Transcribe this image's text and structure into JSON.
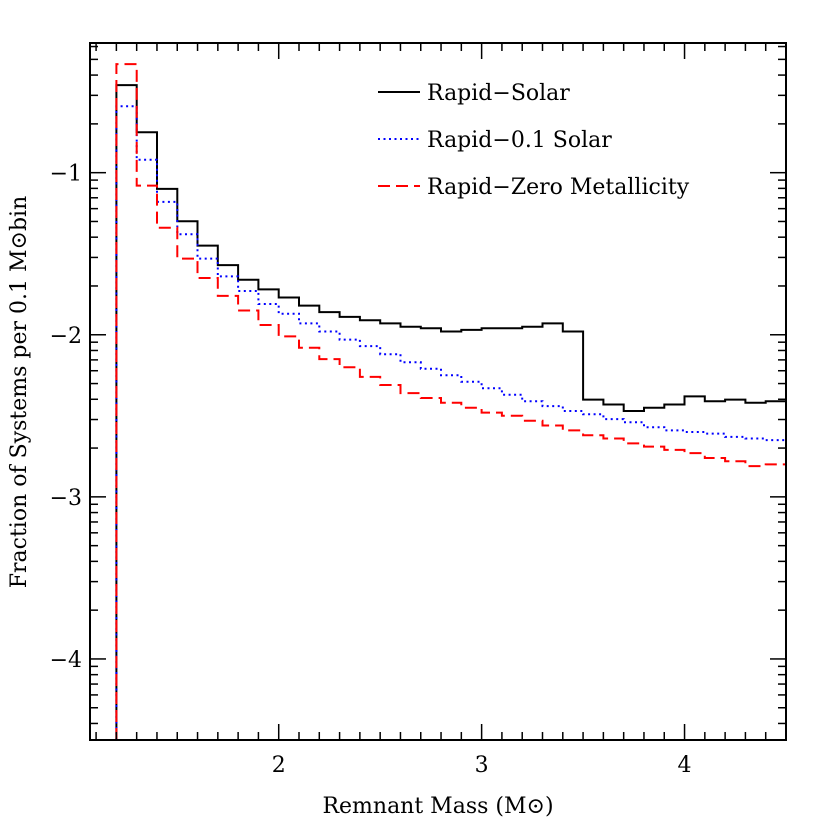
{
  "chart_data": {
    "type": "line",
    "style": "step",
    "xlabel": "Remnant Mass (M⊙)",
    "ylabel": "Fraction of Systems per 0.1 M⊙bin",
    "xlim": [
      1.07,
      4.5
    ],
    "ylim": [
      -4.5,
      -0.2
    ],
    "y_scale": "log10",
    "x_ticks": [
      2,
      3,
      4
    ],
    "y_ticks": [
      -1,
      -2,
      -3,
      -4
    ],
    "grid": false,
    "legend_position": "top-right",
    "bin_edges": [
      1.2,
      1.3,
      1.4,
      1.5,
      1.6,
      1.7,
      1.8,
      1.9,
      2.0,
      2.1,
      2.2,
      2.3,
      2.4,
      2.5,
      2.6,
      2.7,
      2.8,
      2.9,
      3.0,
      3.1,
      3.2,
      3.3,
      3.4,
      3.5,
      3.6,
      3.7,
      3.8,
      3.9,
      4.0,
      4.1,
      4.2,
      4.3,
      4.4,
      4.5
    ],
    "series": [
      {
        "name": "Rapid−Solar",
        "color": "#000000",
        "dash": "solid",
        "values": [
          -0.46,
          -0.75,
          -1.1,
          -1.3,
          -1.45,
          -1.57,
          -1.66,
          -1.72,
          -1.77,
          -1.82,
          -1.86,
          -1.89,
          -1.91,
          -1.93,
          -1.95,
          -1.96,
          -1.98,
          -1.97,
          -1.96,
          -1.96,
          -1.95,
          -1.93,
          -1.98,
          -2.4,
          -2.43,
          -2.47,
          -2.45,
          -2.43,
          -2.38,
          -2.41,
          -2.4,
          -2.42,
          -2.41
        ]
      },
      {
        "name": "Rapid−0.1 Solar",
        "color": "#0000ff",
        "dash": "dotted",
        "values": [
          -0.59,
          -0.92,
          -1.18,
          -1.38,
          -1.53,
          -1.64,
          -1.73,
          -1.81,
          -1.87,
          -1.93,
          -1.98,
          -2.03,
          -2.07,
          -2.12,
          -2.17,
          -2.21,
          -2.25,
          -2.29,
          -2.33,
          -2.37,
          -2.41,
          -2.44,
          -2.47,
          -2.49,
          -2.52,
          -2.54,
          -2.57,
          -2.59,
          -2.6,
          -2.61,
          -2.63,
          -2.64,
          -2.65
        ]
      },
      {
        "name": "Rapid−Zero Metallicity",
        "color": "#ff0000",
        "dash": "dashed",
        "values": [
          -0.33,
          -1.08,
          -1.34,
          -1.53,
          -1.65,
          -1.76,
          -1.85,
          -1.94,
          -2.01,
          -2.08,
          -2.15,
          -2.2,
          -2.26,
          -2.31,
          -2.36,
          -2.39,
          -2.42,
          -2.45,
          -2.48,
          -2.5,
          -2.53,
          -2.56,
          -2.59,
          -2.62,
          -2.64,
          -2.67,
          -2.69,
          -2.71,
          -2.73,
          -2.76,
          -2.78,
          -2.81,
          -2.8
        ]
      }
    ]
  }
}
